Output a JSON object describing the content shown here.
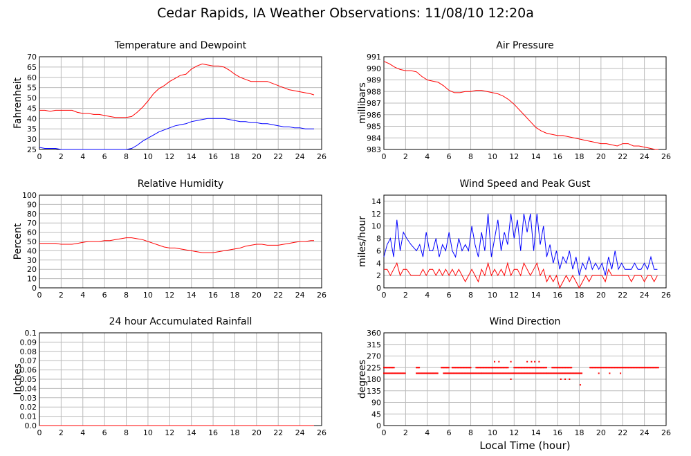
{
  "page": {
    "title": "Cedar Rapids, IA Weather Observations: 11/08/10 12:20a"
  },
  "colors": {
    "temp": "#ff0000",
    "dewpoint": "#0000ff",
    "grid": "#bbbbbb",
    "frame": "#000000"
  },
  "chart_data": [
    {
      "type": "line",
      "title": "Temperature and Dewpoint",
      "xlabel": "",
      "ylabel": "Fahrenheit",
      "xlim": [
        0,
        26
      ],
      "ylim": [
        25,
        70
      ],
      "xticks": [
        "0",
        "2",
        "4",
        "6",
        "8",
        "10",
        "12",
        "14",
        "16",
        "18",
        "20",
        "22",
        "24",
        "26"
      ],
      "yticks": [
        "25",
        "30",
        "35",
        "40",
        "45",
        "50",
        "55",
        "60",
        "65",
        "70"
      ],
      "grid": true,
      "series": [
        {
          "color": "#ff0000",
          "x": [
            0,
            0.5,
            1,
            1.5,
            2,
            2.5,
            3,
            3.5,
            4,
            4.5,
            5,
            5.5,
            6,
            6.5,
            7,
            7.5,
            8,
            8.5,
            9,
            9.5,
            10,
            10.5,
            11,
            11.5,
            12,
            12.5,
            13,
            13.5,
            14,
            14.5,
            15,
            15.5,
            16,
            16.5,
            17,
            17.5,
            18,
            18.5,
            19,
            19.5,
            20,
            20.5,
            21,
            21.5,
            22,
            22.5,
            23,
            23.5,
            24,
            24.5,
            25,
            25.3
          ],
          "y": [
            44,
            44,
            43.5,
            44,
            44,
            44,
            44,
            43,
            42.5,
            42.5,
            42,
            42,
            41.5,
            41,
            40.5,
            40.5,
            40.5,
            41,
            43,
            45.5,
            48.5,
            52,
            54.5,
            56,
            58,
            59.5,
            61,
            61.5,
            64,
            65.5,
            66.5,
            66,
            65.5,
            65.5,
            65,
            63.5,
            61.5,
            60,
            59,
            58,
            58,
            58,
            58,
            57,
            56,
            55,
            54,
            53.5,
            53,
            52.5,
            52,
            51.5
          ]
        },
        {
          "color": "#0000ff",
          "x": [
            0,
            0.5,
            1,
            1.5,
            2,
            3,
            4,
            5,
            6,
            7,
            8,
            8.5,
            9,
            9.5,
            10,
            10.5,
            11,
            11.5,
            12,
            12.5,
            13,
            13.5,
            14,
            14.5,
            15,
            15.5,
            16,
            16.5,
            17,
            17.5,
            18,
            18.5,
            19,
            19.5,
            20,
            20.5,
            21,
            21.5,
            22,
            22.5,
            23,
            23.5,
            24,
            24.5,
            25,
            25.3
          ],
          "y": [
            26,
            25.5,
            25.5,
            25.5,
            25,
            25,
            25,
            25,
            25,
            25,
            25,
            25.5,
            27,
            29,
            30.5,
            32,
            33.5,
            34.5,
            35.5,
            36.5,
            37,
            37.5,
            38.5,
            39,
            39.5,
            40,
            40,
            40,
            40,
            39.5,
            39,
            38.5,
            38.5,
            38,
            38,
            37.5,
            37.5,
            37,
            36.5,
            36,
            36,
            35.5,
            35.5,
            35,
            35,
            35
          ]
        }
      ]
    },
    {
      "type": "line",
      "title": "Air Pressure",
      "xlabel": "",
      "ylabel": "millibars",
      "xlim": [
        0,
        26
      ],
      "ylim": [
        983,
        991
      ],
      "xticks": [
        "0",
        "2",
        "4",
        "6",
        "8",
        "10",
        "12",
        "14",
        "16",
        "18",
        "20",
        "22",
        "24",
        "26"
      ],
      "yticks": [
        "983",
        "984",
        "985",
        "986",
        "987",
        "988",
        "989",
        "990",
        "991"
      ],
      "grid": true,
      "series": [
        {
          "color": "#ff0000",
          "x": [
            0,
            0.5,
            1,
            1.5,
            2,
            2.5,
            3,
            3.5,
            4,
            4.5,
            5,
            5.5,
            6,
            6.5,
            7,
            7.5,
            8,
            8.5,
            9,
            9.5,
            10,
            10.5,
            11,
            11.5,
            12,
            12.5,
            13,
            13.5,
            14,
            14.5,
            15,
            15.5,
            16,
            16.5,
            17,
            17.5,
            18,
            18.5,
            19,
            19.5,
            20,
            20.5,
            21,
            21.5,
            22,
            22.5,
            23,
            23.5,
            24,
            24.5,
            25,
            25.3
          ],
          "y": [
            990.6,
            990.4,
            990.1,
            989.9,
            989.8,
            989.8,
            989.7,
            989.3,
            989,
            988.9,
            988.8,
            988.5,
            988.1,
            987.9,
            987.9,
            988,
            988,
            988.1,
            988.1,
            988,
            987.9,
            987.8,
            987.6,
            987.3,
            986.9,
            986.4,
            985.9,
            985.4,
            984.9,
            984.6,
            984.4,
            984.3,
            984.2,
            984.2,
            984.1,
            984,
            983.9,
            983.8,
            983.7,
            983.6,
            983.5,
            983.5,
            983.4,
            983.3,
            983.5,
            983.5,
            983.3,
            983.3,
            983.2,
            983.1,
            983.0,
            983.0
          ]
        }
      ]
    },
    {
      "type": "line",
      "title": "Relative Humidity",
      "xlabel": "",
      "ylabel": "Percent",
      "xlim": [
        0,
        26
      ],
      "ylim": [
        0,
        100
      ],
      "xticks": [
        "0",
        "2",
        "4",
        "6",
        "8",
        "10",
        "12",
        "14",
        "16",
        "18",
        "20",
        "22",
        "24",
        "26"
      ],
      "yticks": [
        "0",
        "10",
        "20",
        "30",
        "40",
        "50",
        "60",
        "70",
        "80",
        "90",
        "100"
      ],
      "grid": true,
      "series": [
        {
          "color": "#ff0000",
          "x": [
            0,
            0.5,
            1,
            1.5,
            2,
            2.5,
            3,
            3.5,
            4,
            4.5,
            5,
            5.5,
            6,
            6.5,
            7,
            7.5,
            8,
            8.5,
            9,
            9.5,
            10,
            10.5,
            11,
            11.5,
            12,
            12.5,
            13,
            13.5,
            14,
            14.5,
            15,
            15.5,
            16,
            16.5,
            17,
            17.5,
            18,
            18.5,
            19,
            19.5,
            20,
            20.5,
            21,
            21.5,
            22,
            22.5,
            23,
            23.5,
            24,
            24.5,
            25,
            25.3
          ],
          "y": [
            48,
            48,
            48,
            48,
            47,
            47,
            47,
            48,
            49,
            50,
            50,
            50,
            51,
            51,
            52,
            53,
            54,
            54,
            53,
            52,
            50,
            48,
            46,
            44,
            43,
            43,
            42,
            41,
            40,
            39,
            38,
            38,
            38,
            39,
            40,
            41,
            42,
            43,
            45,
            46,
            47,
            47,
            46,
            46,
            46,
            47,
            48,
            49,
            50,
            50,
            51,
            51
          ]
        }
      ]
    },
    {
      "type": "line",
      "title": "Wind Speed and Peak Gust",
      "xlabel": "",
      "ylabel": "miles/hour",
      "xlim": [
        0,
        26
      ],
      "ylim": [
        0,
        15
      ],
      "xticks": [
        "0",
        "2",
        "4",
        "6",
        "8",
        "10",
        "12",
        "14",
        "16",
        "18",
        "20",
        "22",
        "24",
        "26"
      ],
      "yticks": [
        "0",
        "2",
        "4",
        "6",
        "8",
        "10",
        "12",
        "14"
      ],
      "grid": true,
      "series": [
        {
          "color": "#0000ff",
          "x": [
            0,
            0.3,
            0.6,
            0.9,
            1.2,
            1.5,
            1.8,
            2.1,
            2.5,
            3,
            3.3,
            3.6,
            3.9,
            4.2,
            4.5,
            4.8,
            5.1,
            5.4,
            5.7,
            6,
            6.3,
            6.6,
            6.9,
            7.2,
            7.5,
            7.8,
            8.1,
            8.4,
            8.7,
            9,
            9.3,
            9.6,
            9.9,
            10.2,
            10.5,
            10.8,
            11.1,
            11.4,
            11.7,
            12,
            12.3,
            12.6,
            12.9,
            13.2,
            13.5,
            13.8,
            14.1,
            14.4,
            14.7,
            15,
            15.3,
            15.6,
            15.9,
            16.2,
            16.5,
            16.8,
            17.1,
            17.4,
            17.7,
            18,
            18.3,
            18.6,
            18.9,
            19.2,
            19.5,
            19.8,
            20.1,
            20.4,
            20.7,
            21,
            21.3,
            21.6,
            21.9,
            22.2,
            22.5,
            22.8,
            23.1,
            23.4,
            23.7,
            24,
            24.3,
            24.6,
            24.9,
            25.2
          ],
          "y": [
            5,
            7,
            8,
            5,
            11,
            6,
            9,
            8,
            7,
            6,
            7,
            5,
            9,
            6,
            6,
            8,
            5,
            7,
            6,
            9,
            6,
            5,
            8,
            6,
            7,
            6,
            10,
            7,
            5,
            9,
            6,
            12,
            5,
            8,
            11,
            6,
            9,
            7,
            12,
            8,
            11,
            6,
            12,
            9,
            12,
            6,
            12,
            7,
            10,
            5,
            7,
            4,
            6,
            3,
            5,
            4,
            6,
            3,
            5,
            2,
            4,
            3,
            5,
            3,
            4,
            3,
            4,
            2,
            5,
            3,
            6,
            3,
            4,
            3,
            3,
            3,
            4,
            3,
            3,
            4,
            3,
            5,
            3,
            3
          ]
        },
        {
          "color": "#ff0000",
          "x": [
            0,
            0.3,
            0.6,
            0.9,
            1.2,
            1.5,
            1.8,
            2.1,
            2.5,
            3,
            3.3,
            3.6,
            3.9,
            4.2,
            4.5,
            4.8,
            5.1,
            5.4,
            5.7,
            6,
            6.3,
            6.6,
            6.9,
            7.2,
            7.5,
            7.8,
            8.1,
            8.4,
            8.7,
            9,
            9.3,
            9.6,
            9.9,
            10.2,
            10.5,
            10.8,
            11.1,
            11.4,
            11.7,
            12,
            12.3,
            12.6,
            12.9,
            13.2,
            13.5,
            13.8,
            14.1,
            14.4,
            14.7,
            15,
            15.3,
            15.6,
            15.9,
            16.2,
            16.5,
            16.8,
            17.1,
            17.4,
            17.7,
            18,
            18.3,
            18.6,
            18.9,
            19.2,
            19.5,
            19.8,
            20.1,
            20.4,
            20.7,
            21,
            21.3,
            21.6,
            21.9,
            22.2,
            22.5,
            22.8,
            23.1,
            23.4,
            23.7,
            24,
            24.3,
            24.6,
            24.9,
            25.2
          ],
          "y": [
            3,
            3,
            2,
            3,
            4,
            2,
            3,
            3,
            2,
            2,
            2,
            3,
            2,
            3,
            3,
            2,
            3,
            2,
            3,
            2,
            3,
            2,
            3,
            2,
            1,
            2,
            3,
            2,
            1,
            3,
            2,
            4,
            2,
            3,
            2,
            3,
            2,
            4,
            2,
            3,
            3,
            2,
            4,
            3,
            2,
            3,
            4,
            2,
            3,
            1,
            2,
            1,
            2,
            0,
            1,
            2,
            1,
            2,
            1,
            0,
            1,
            2,
            1,
            2,
            2,
            2,
            2,
            1,
            3,
            2,
            2,
            2,
            2,
            2,
            2,
            1,
            2,
            2,
            2,
            1,
            2,
            2,
            1,
            2
          ]
        }
      ]
    },
    {
      "type": "line",
      "title": "24 hour Accumulated Rainfall",
      "xlabel": "",
      "ylabel": "Inches",
      "xlim": [
        0,
        26
      ],
      "ylim": [
        0,
        0.1
      ],
      "xticks": [
        "0",
        "2",
        "4",
        "6",
        "8",
        "10",
        "12",
        "14",
        "16",
        "18",
        "20",
        "22",
        "24",
        "26"
      ],
      "yticks": [
        "0.0",
        "0.01",
        "0.02",
        "0.03",
        "0.04",
        "0.05",
        "0.06",
        "0.07",
        "0.08",
        "0.09",
        "0.1"
      ],
      "grid": true,
      "series": [
        {
          "color": "#ff0000",
          "x": [
            0,
            25.3
          ],
          "y": [
            0,
            0
          ]
        }
      ]
    },
    {
      "type": "scatter",
      "title": "Wind Direction",
      "xlabel": "Local Time (hour)",
      "ylabel": "degrees",
      "xlim": [
        0,
        26
      ],
      "ylim": [
        0,
        360
      ],
      "xticks": [
        "0",
        "2",
        "4",
        "6",
        "8",
        "10",
        "12",
        "14",
        "16",
        "18",
        "20",
        "22",
        "24",
        "26"
      ],
      "yticks": [
        "0",
        "45",
        "90",
        "135",
        "180",
        "225",
        "270",
        "315",
        "360"
      ],
      "grid": true,
      "series": [
        {
          "color": "#ff0000",
          "segments": [
            {
              "x0": 0,
              "x1": 2,
              "y": 203
            },
            {
              "x0": 0,
              "x1": 1,
              "y": 225
            },
            {
              "x0": 3,
              "x1": 3.3,
              "y": 225
            },
            {
              "x0": 3,
              "x1": 5,
              "y": 203
            },
            {
              "x0": 5.3,
              "x1": 6,
              "y": 225
            },
            {
              "x0": 5.5,
              "x1": 9,
              "y": 203
            },
            {
              "x0": 6.3,
              "x1": 8,
              "y": 225
            },
            {
              "x0": 8.5,
              "x1": 10,
              "y": 225
            },
            {
              "x0": 9,
              "x1": 12,
              "y": 203
            },
            {
              "x0": 10,
              "x1": 11.5,
              "y": 225
            },
            {
              "x0": 12,
              "x1": 15,
              "y": 225
            },
            {
              "x0": 12,
              "x1": 15,
              "y": 203
            },
            {
              "x0": 15,
              "x1": 18.3,
              "y": 203
            },
            {
              "x0": 15.5,
              "x1": 17.3,
              "y": 225
            },
            {
              "x0": 19,
              "x1": 25.3,
              "y": 225
            }
          ],
          "x": [
            10.2,
            10.6,
            11.7,
            13.2,
            13.6,
            13.9,
            14.3,
            11.7,
            16.3,
            16.7,
            17.1,
            18.1,
            19.8,
            20.8,
            21.8
          ],
          "y": [
            248,
            248,
            248,
            248,
            248,
            248,
            248,
            180,
            180,
            180,
            180,
            158,
            203,
            203,
            203
          ]
        }
      ]
    }
  ]
}
